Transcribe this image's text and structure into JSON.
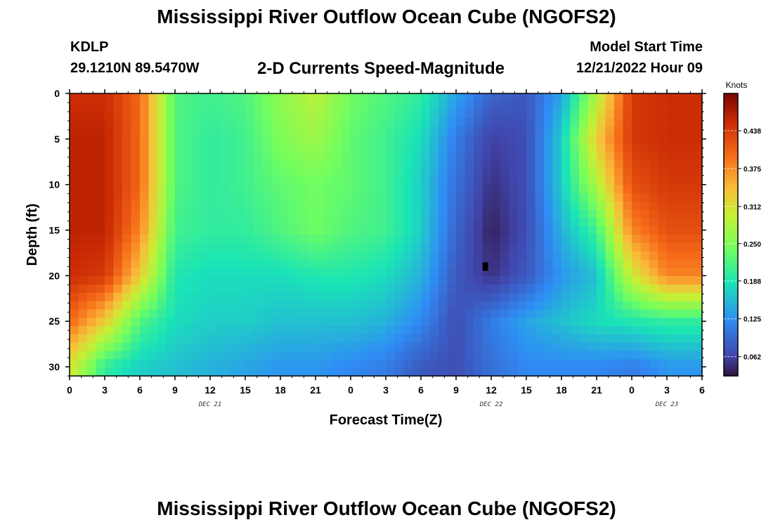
{
  "title": "Mississippi River Outflow Ocean Cube (NGOFS2)",
  "bottom_title": "Mississippi River Outflow Ocean Cube (NGOFS2)",
  "station": {
    "id": "KDLP",
    "coords": "29.1210N  89.5470W"
  },
  "subtitle": "2-D Currents Speed-Magnitude",
  "model_start": {
    "label": "Model Start Time",
    "value": "12/21/2022 Hour 09"
  },
  "colorbar": {
    "unit": "Knots",
    "ticks": [
      "0.438",
      "0.375",
      "0.312",
      "0.250",
      "0.188",
      "0.125",
      "0.062"
    ],
    "tick_values": [
      0.438,
      0.375,
      0.312,
      0.25,
      0.188,
      0.125,
      0.062
    ],
    "range": [
      0.03,
      0.5
    ]
  },
  "chart_data": {
    "type": "heatmap",
    "title": "2-D Currents Speed-Magnitude",
    "xlabel": "Forecast Time(Z)",
    "ylabel": "Depth (ft)",
    "x_unit": "hours",
    "x_range": [
      0,
      54
    ],
    "y_range": [
      0,
      31
    ],
    "y_inverted": true,
    "x_tick_labels": [
      "0",
      "3",
      "6",
      "9",
      "12",
      "15",
      "18",
      "21",
      "0",
      "3",
      "6",
      "9",
      "12",
      "15",
      "18",
      "21",
      "0",
      "3",
      "6"
    ],
    "x_tick_hours": [
      0,
      3,
      6,
      9,
      12,
      15,
      18,
      21,
      24,
      27,
      30,
      33,
      36,
      39,
      42,
      45,
      48,
      51,
      54
    ],
    "date_labels": [
      {
        "text": "DEC 21",
        "hour": 12
      },
      {
        "text": "DEC 22",
        "hour": 36
      },
      {
        "text": "DEC 23",
        "hour": 51
      }
    ],
    "y_tick_labels": [
      "0",
      "5",
      "10",
      "15",
      "20",
      "25",
      "30"
    ],
    "y_tick_values": [
      0,
      5,
      10,
      15,
      20,
      25,
      30
    ],
    "value_unit": "Knots",
    "sample_hours": [
      0,
      3,
      6,
      9,
      12,
      15,
      18,
      21,
      24,
      27,
      30,
      33,
      36,
      39,
      42,
      45,
      48,
      51,
      54
    ],
    "sample_depths": [
      0,
      5,
      10,
      15,
      20,
      25,
      30
    ],
    "speed_knots": [
      [
        0.45,
        0.45,
        0.4,
        0.22,
        0.21,
        0.22,
        0.26,
        0.29,
        0.24,
        0.22,
        0.2,
        0.14,
        0.09,
        0.08,
        0.14,
        0.28,
        0.44,
        0.45,
        0.45
      ],
      [
        0.46,
        0.46,
        0.4,
        0.22,
        0.2,
        0.21,
        0.25,
        0.27,
        0.23,
        0.21,
        0.18,
        0.11,
        0.06,
        0.07,
        0.17,
        0.33,
        0.44,
        0.45,
        0.45
      ],
      [
        0.46,
        0.46,
        0.4,
        0.22,
        0.2,
        0.21,
        0.23,
        0.24,
        0.23,
        0.21,
        0.17,
        0.1,
        0.05,
        0.07,
        0.17,
        0.28,
        0.42,
        0.44,
        0.44
      ],
      [
        0.46,
        0.46,
        0.38,
        0.21,
        0.2,
        0.2,
        0.22,
        0.24,
        0.22,
        0.21,
        0.17,
        0.09,
        0.04,
        0.07,
        0.15,
        0.21,
        0.38,
        0.42,
        0.42
      ],
      [
        0.45,
        0.44,
        0.33,
        0.19,
        0.18,
        0.18,
        0.18,
        0.19,
        0.19,
        0.18,
        0.15,
        0.08,
        0.05,
        0.08,
        0.13,
        0.16,
        0.3,
        0.38,
        0.38
      ],
      [
        0.4,
        0.33,
        0.22,
        0.18,
        0.17,
        0.17,
        0.16,
        0.16,
        0.16,
        0.15,
        0.12,
        0.07,
        0.11,
        0.14,
        0.16,
        0.18,
        0.19,
        0.2,
        0.2
      ],
      [
        0.31,
        0.2,
        0.17,
        0.16,
        0.15,
        0.14,
        0.13,
        0.13,
        0.12,
        0.11,
        0.08,
        0.07,
        0.1,
        0.12,
        0.12,
        0.12,
        0.11,
        0.13,
        0.13
      ]
    ],
    "marker": {
      "hour": 35.5,
      "depth": 19
    }
  }
}
